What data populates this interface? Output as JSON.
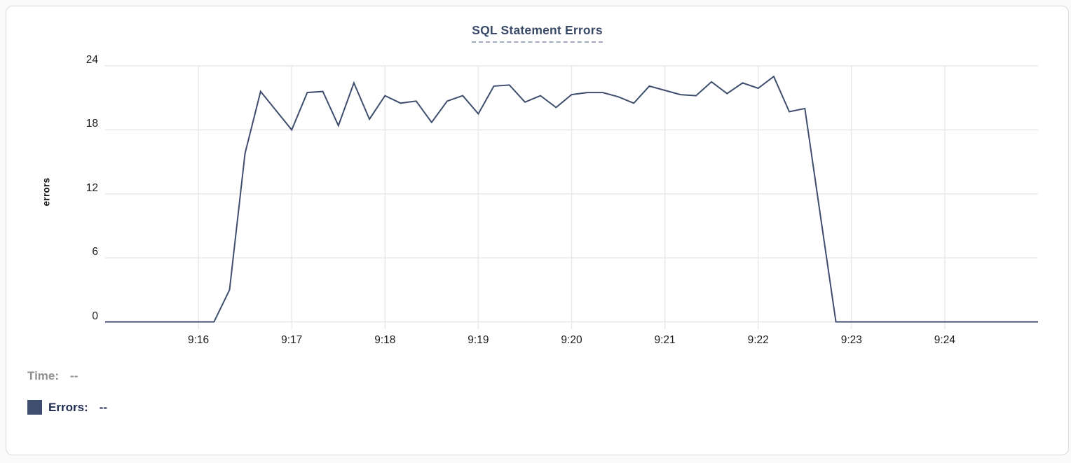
{
  "card": {
    "title": "SQL Statement Errors"
  },
  "legend": {
    "time_label": "Time:",
    "time_value": "--",
    "errors_label": "Errors:",
    "errors_value": "--"
  },
  "colors": {
    "line": "#3f4e6e",
    "swatch": "#3f4e70",
    "grid": "#e8e8e8",
    "title_text": "#3a4a68",
    "time_text": "#8e8e93",
    "errors_text": "#1d2a4e"
  },
  "chart_data": {
    "type": "line",
    "title": "SQL Statement Errors",
    "xlabel": "",
    "ylabel": "errors",
    "ylim": [
      0,
      24
    ],
    "y_ticks": [
      0,
      6,
      12,
      18,
      24
    ],
    "x_start": "9:15:00",
    "x_end": "9:25:00",
    "x_tick_labels": [
      "9:16",
      "9:17",
      "9:18",
      "9:19",
      "9:20",
      "9:21",
      "9:22",
      "9:23",
      "9:24"
    ],
    "sample_interval_seconds": 10,
    "grid": true,
    "legend_position": "bottom-left",
    "series": [
      {
        "name": "Errors",
        "points": [
          [
            "9:15:00",
            0
          ],
          [
            "9:15:10",
            0
          ],
          [
            "9:15:20",
            0
          ],
          [
            "9:15:30",
            0
          ],
          [
            "9:15:40",
            0
          ],
          [
            "9:15:50",
            0
          ],
          [
            "9:16:00",
            0
          ],
          [
            "9:16:10",
            0
          ],
          [
            "9:16:20",
            3
          ],
          [
            "9:16:30",
            15.8
          ],
          [
            "9:16:40",
            21.6
          ],
          [
            "9:16:50",
            19.8
          ],
          [
            "9:17:00",
            18
          ],
          [
            "9:17:10",
            21.5
          ],
          [
            "9:17:20",
            21.6
          ],
          [
            "9:17:30",
            18.4
          ],
          [
            "9:17:40",
            22.4
          ],
          [
            "9:17:50",
            19
          ],
          [
            "9:18:00",
            21.2
          ],
          [
            "9:18:10",
            20.5
          ],
          [
            "9:18:20",
            20.7
          ],
          [
            "9:18:30",
            18.7
          ],
          [
            "9:18:40",
            20.7
          ],
          [
            "9:18:50",
            21.2
          ],
          [
            "9:19:00",
            19.5
          ],
          [
            "9:19:10",
            22.1
          ],
          [
            "9:19:20",
            22.2
          ],
          [
            "9:19:30",
            20.6
          ],
          [
            "9:19:40",
            21.2
          ],
          [
            "9:19:50",
            20.1
          ],
          [
            "9:20:00",
            21.3
          ],
          [
            "9:20:10",
            21.5
          ],
          [
            "9:20:20",
            21.5
          ],
          [
            "9:20:30",
            21.1
          ],
          [
            "9:20:40",
            20.5
          ],
          [
            "9:20:50",
            22.1
          ],
          [
            "9:21:00",
            21.7
          ],
          [
            "9:21:10",
            21.3
          ],
          [
            "9:21:20",
            21.2
          ],
          [
            "9:21:30",
            22.5
          ],
          [
            "9:21:40",
            21.4
          ],
          [
            "9:21:50",
            22.4
          ],
          [
            "9:22:00",
            21.9
          ],
          [
            "9:22:10",
            23
          ],
          [
            "9:22:20",
            19.7
          ],
          [
            "9:22:30",
            20
          ],
          [
            "9:22:40",
            10
          ],
          [
            "9:22:50",
            0
          ],
          [
            "9:23:00",
            0
          ],
          [
            "9:23:10",
            0
          ],
          [
            "9:23:20",
            0
          ],
          [
            "9:23:30",
            0
          ],
          [
            "9:23:40",
            0
          ],
          [
            "9:23:50",
            0
          ],
          [
            "9:24:00",
            0
          ],
          [
            "9:24:10",
            0
          ],
          [
            "9:24:20",
            0
          ],
          [
            "9:24:30",
            0
          ],
          [
            "9:24:40",
            0
          ],
          [
            "9:24:50",
            0
          ],
          [
            "9:25:00",
            0
          ]
        ]
      }
    ]
  }
}
